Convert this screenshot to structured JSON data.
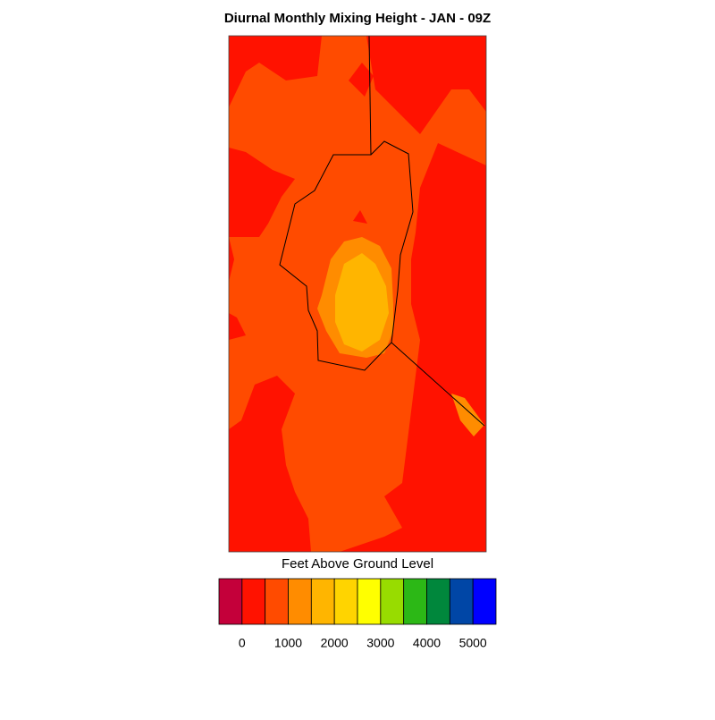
{
  "title": "Diurnal Monthly Mixing Height - JAN - 09Z",
  "colorbar": {
    "label": "Feet Above Ground Level",
    "colors": [
      "#c4003a",
      "#ff1200",
      "#ff4b00",
      "#ff8c00",
      "#ffb500",
      "#ffd400",
      "#ffff00",
      "#98dc00",
      "#2cb816",
      "#00873c",
      "#0046a6",
      "#0000ff"
    ],
    "ticks": [
      0,
      1000,
      2000,
      3000,
      4000,
      5000
    ]
  }
}
